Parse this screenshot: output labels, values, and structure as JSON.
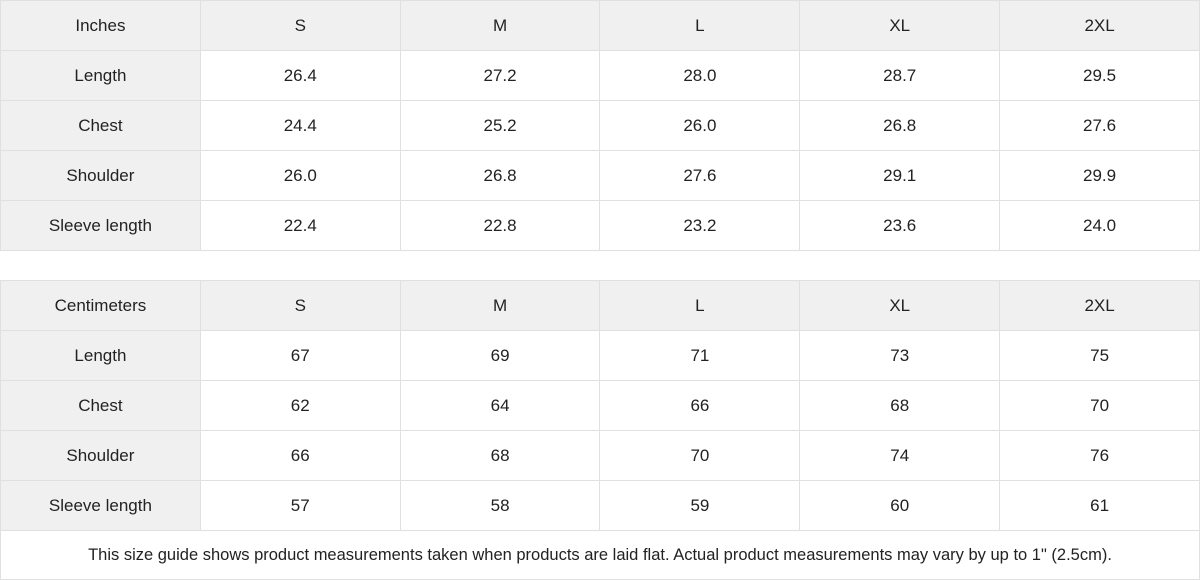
{
  "colors": {
    "header_bg": "#f0f0f0",
    "cell_bg": "#ffffff",
    "border": "#e0e0e0",
    "text": "#222222"
  },
  "tables": [
    {
      "unit_label": "Inches",
      "sizes": [
        "S",
        "M",
        "L",
        "XL",
        "2XL"
      ],
      "rows": [
        {
          "label": "Length",
          "values": [
            "26.4",
            "27.2",
            "28.0",
            "28.7",
            "29.5"
          ]
        },
        {
          "label": "Chest",
          "values": [
            "24.4",
            "25.2",
            "26.0",
            "26.8",
            "27.6"
          ]
        },
        {
          "label": "Shoulder",
          "values": [
            "26.0",
            "26.8",
            "27.6",
            "29.1",
            "29.9"
          ]
        },
        {
          "label": "Sleeve length",
          "values": [
            "22.4",
            "22.8",
            "23.2",
            "23.6",
            "24.0"
          ]
        }
      ]
    },
    {
      "unit_label": "Centimeters",
      "sizes": [
        "S",
        "M",
        "L",
        "XL",
        "2XL"
      ],
      "rows": [
        {
          "label": "Length",
          "values": [
            "67",
            "69",
            "71",
            "73",
            "75"
          ]
        },
        {
          "label": "Chest",
          "values": [
            "62",
            "64",
            "66",
            "68",
            "70"
          ]
        },
        {
          "label": "Shoulder",
          "values": [
            "66",
            "68",
            "70",
            "74",
            "76"
          ]
        },
        {
          "label": "Sleeve length",
          "values": [
            "57",
            "58",
            "59",
            "60",
            "61"
          ]
        }
      ]
    }
  ],
  "footer": {
    "note": "This size guide shows product measurements taken when products are laid flat.  Actual product measurements may vary by up to 1\" (2.5cm)."
  }
}
